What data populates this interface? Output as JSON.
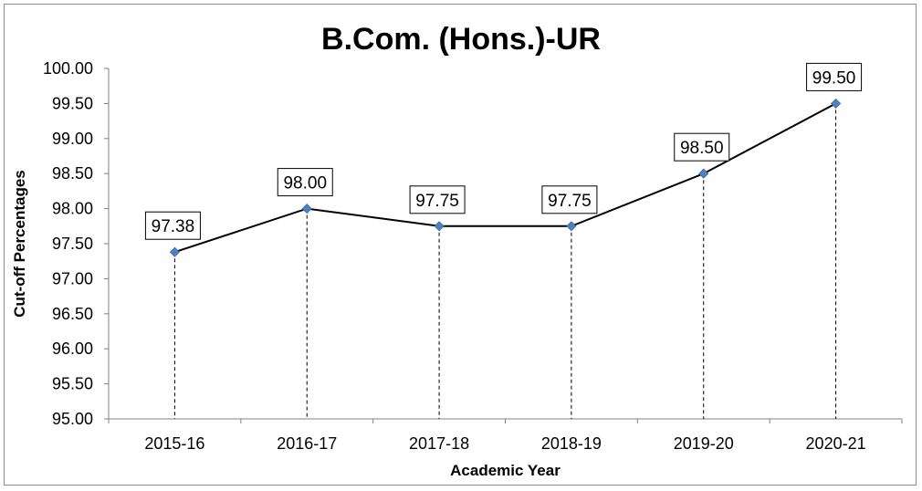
{
  "chart_data": {
    "type": "line",
    "title": "B.Com. (Hons.)-UR",
    "xlabel": "Academic Year",
    "ylabel": "Cut-off Percentages",
    "categories": [
      "2015-16",
      "2016-17",
      "2017-18",
      "2018-19",
      "2019-20",
      "2020-21"
    ],
    "values": [
      97.38,
      98.0,
      97.75,
      97.75,
      98.5,
      99.5
    ],
    "data_labels": [
      "97.38",
      "98.00",
      "97.75",
      "97.75",
      "98.50",
      "99.50"
    ],
    "y_ticks": [
      "95.00",
      "95.50",
      "96.00",
      "96.50",
      "97.00",
      "97.50",
      "98.00",
      "98.50",
      "99.00",
      "99.50",
      "100.00"
    ],
    "ylim": [
      95,
      100
    ],
    "grid": false,
    "legend": "none",
    "drop_lines": true,
    "colors": {
      "line": "#000000",
      "marker": "#4f81bd",
      "axis": "#808080"
    }
  }
}
